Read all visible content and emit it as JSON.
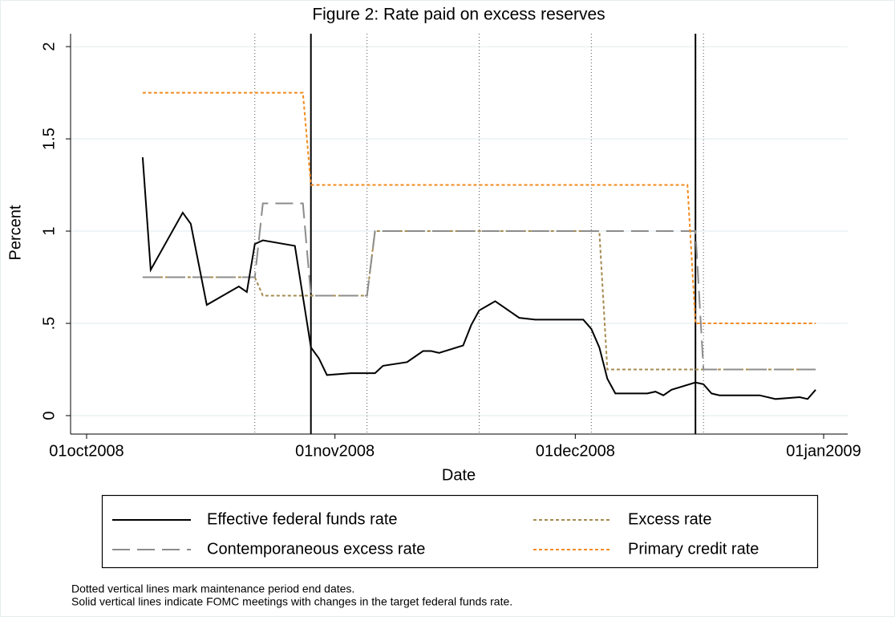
{
  "chart_data": {
    "type": "line",
    "title": "Figure 2: Rate paid on excess reserves",
    "xlabel": "Date",
    "ylabel": "Percent",
    "xlim": [
      "2008-09-29",
      "2009-01-04"
    ],
    "xticks": [
      {
        "value": "2008-10-01",
        "label": "01oct2008"
      },
      {
        "value": "2008-11-01",
        "label": "01nov2008"
      },
      {
        "value": "2008-12-01",
        "label": "01dec2008"
      },
      {
        "value": "2009-01-01",
        "label": "01jan2009"
      }
    ],
    "ylim": [
      -0.1,
      2.07
    ],
    "yticks": [
      0,
      {
        "value": 0.5,
        "label": ".5"
      },
      1,
      1.5,
      2
    ],
    "grid": true,
    "series": [
      {
        "name": "Effective federal funds rate",
        "color": "#000000",
        "style": "solid",
        "x": [
          "2008-10-08",
          "2008-10-09",
          "2008-10-13",
          "2008-10-14",
          "2008-10-15",
          "2008-10-16",
          "2008-10-20",
          "2008-10-21",
          "2008-10-22",
          "2008-10-23",
          "2008-10-27",
          "2008-10-29",
          "2008-10-30",
          "2008-10-31",
          "2008-11-03",
          "2008-11-04",
          "2008-11-05",
          "2008-11-06",
          "2008-11-07",
          "2008-11-10",
          "2008-11-12",
          "2008-11-13",
          "2008-11-14",
          "2008-11-17",
          "2008-11-18",
          "2008-11-19",
          "2008-11-21",
          "2008-11-22",
          "2008-11-24",
          "2008-11-26",
          "2008-12-02",
          "2008-12-03",
          "2008-12-04",
          "2008-12-05",
          "2008-12-06",
          "2008-12-10",
          "2008-12-11",
          "2008-12-12",
          "2008-12-13",
          "2008-12-16",
          "2008-12-17",
          "2008-12-18",
          "2008-12-19",
          "2008-12-22",
          "2008-12-23",
          "2008-12-24",
          "2008-12-26",
          "2008-12-29",
          "2008-12-30",
          "2008-12-31"
        ],
        "values": [
          1.4,
          0.79,
          1.1,
          1.04,
          0.82,
          0.6,
          0.7,
          0.67,
          0.93,
          0.95,
          0.92,
          0.37,
          0.31,
          0.22,
          0.23,
          0.23,
          0.23,
          0.23,
          0.27,
          0.29,
          0.35,
          0.35,
          0.34,
          0.38,
          0.49,
          0.57,
          0.62,
          0.59,
          0.53,
          0.52,
          0.52,
          0.47,
          0.37,
          0.2,
          0.12,
          0.12,
          0.13,
          0.11,
          0.14,
          0.18,
          0.17,
          0.12,
          0.11,
          0.11,
          0.11,
          0.11,
          0.09,
          0.1,
          0.09,
          0.14
        ]
      },
      {
        "name": "Excess rate",
        "color": "#a58b50",
        "style": "shortdash",
        "x": [
          "2008-10-08",
          "2008-10-22",
          "2008-10-23",
          "2008-11-05",
          "2008-11-06",
          "2008-12-04",
          "2008-12-05",
          "2008-12-31"
        ],
        "values": [
          0.75,
          0.75,
          0.65,
          0.65,
          1.0,
          1.0,
          0.25,
          0.25
        ]
      },
      {
        "name": "Contemporaneous excess rate",
        "color": "#8c8c8c",
        "style": "longdash",
        "x": [
          "2008-10-08",
          "2008-10-22",
          "2008-10-23",
          "2008-10-28",
          "2008-10-29",
          "2008-11-05",
          "2008-11-06",
          "2008-12-16",
          "2008-12-17",
          "2008-12-31"
        ],
        "values": [
          0.75,
          0.75,
          1.15,
          1.15,
          0.65,
          0.65,
          1.0,
          1.0,
          0.25,
          0.25
        ]
      },
      {
        "name": "Primary credit rate",
        "color": "#f28a1e",
        "style": "shortdash",
        "x": [
          "2008-10-08",
          "2008-10-28",
          "2008-10-29",
          "2008-12-15",
          "2008-12-16",
          "2008-12-31"
        ],
        "values": [
          1.75,
          1.75,
          1.25,
          1.25,
          0.5,
          0.5
        ]
      }
    ],
    "reference_lines": {
      "dotted": [
        "2008-10-22",
        "2008-11-05",
        "2008-11-19",
        "2008-12-03",
        "2008-12-17"
      ],
      "solid": [
        "2008-10-29",
        "2008-12-16"
      ]
    },
    "notes": [
      "Dotted vertical lines mark maintenance period end dates.",
      "Solid vertical lines indicate FOMC meetings with changes in the target federal funds rate."
    ]
  }
}
